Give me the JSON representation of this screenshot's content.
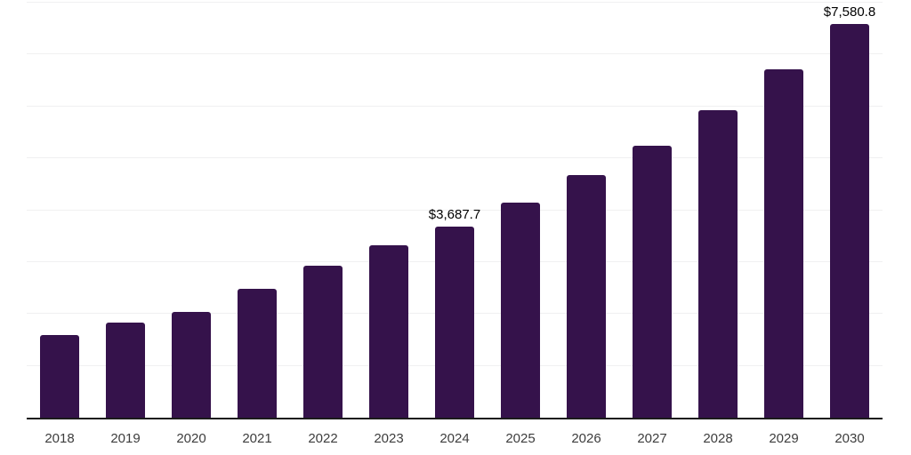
{
  "chart_data": {
    "type": "bar",
    "title": "",
    "xlabel": "",
    "ylabel": "",
    "categories": [
      "2018",
      "2019",
      "2020",
      "2021",
      "2022",
      "2023",
      "2024",
      "2025",
      "2026",
      "2027",
      "2028",
      "2029",
      "2030"
    ],
    "values": [
      1590,
      1830,
      2040,
      2490,
      2930,
      3330,
      3687.7,
      4140,
      4670,
      5240,
      5920,
      6710,
      7580.8
    ],
    "value_labels": [
      "",
      "",
      "",
      "",
      "",
      "",
      "$3,687.7",
      "",
      "",
      "",
      "",
      "",
      "$7,580.8"
    ],
    "ylim": [
      0,
      8000
    ],
    "grid_interval": 1000,
    "grid": "horizontal-only",
    "legend": "none",
    "y_tick_labels_visible": false,
    "colors": {
      "bar": "#35124b",
      "gridline": "#f0f0f1",
      "axis_line": "#1b1b1b",
      "tick_label": "#3d3d3d",
      "value_label": "#000000",
      "background": "#ffffff"
    }
  }
}
